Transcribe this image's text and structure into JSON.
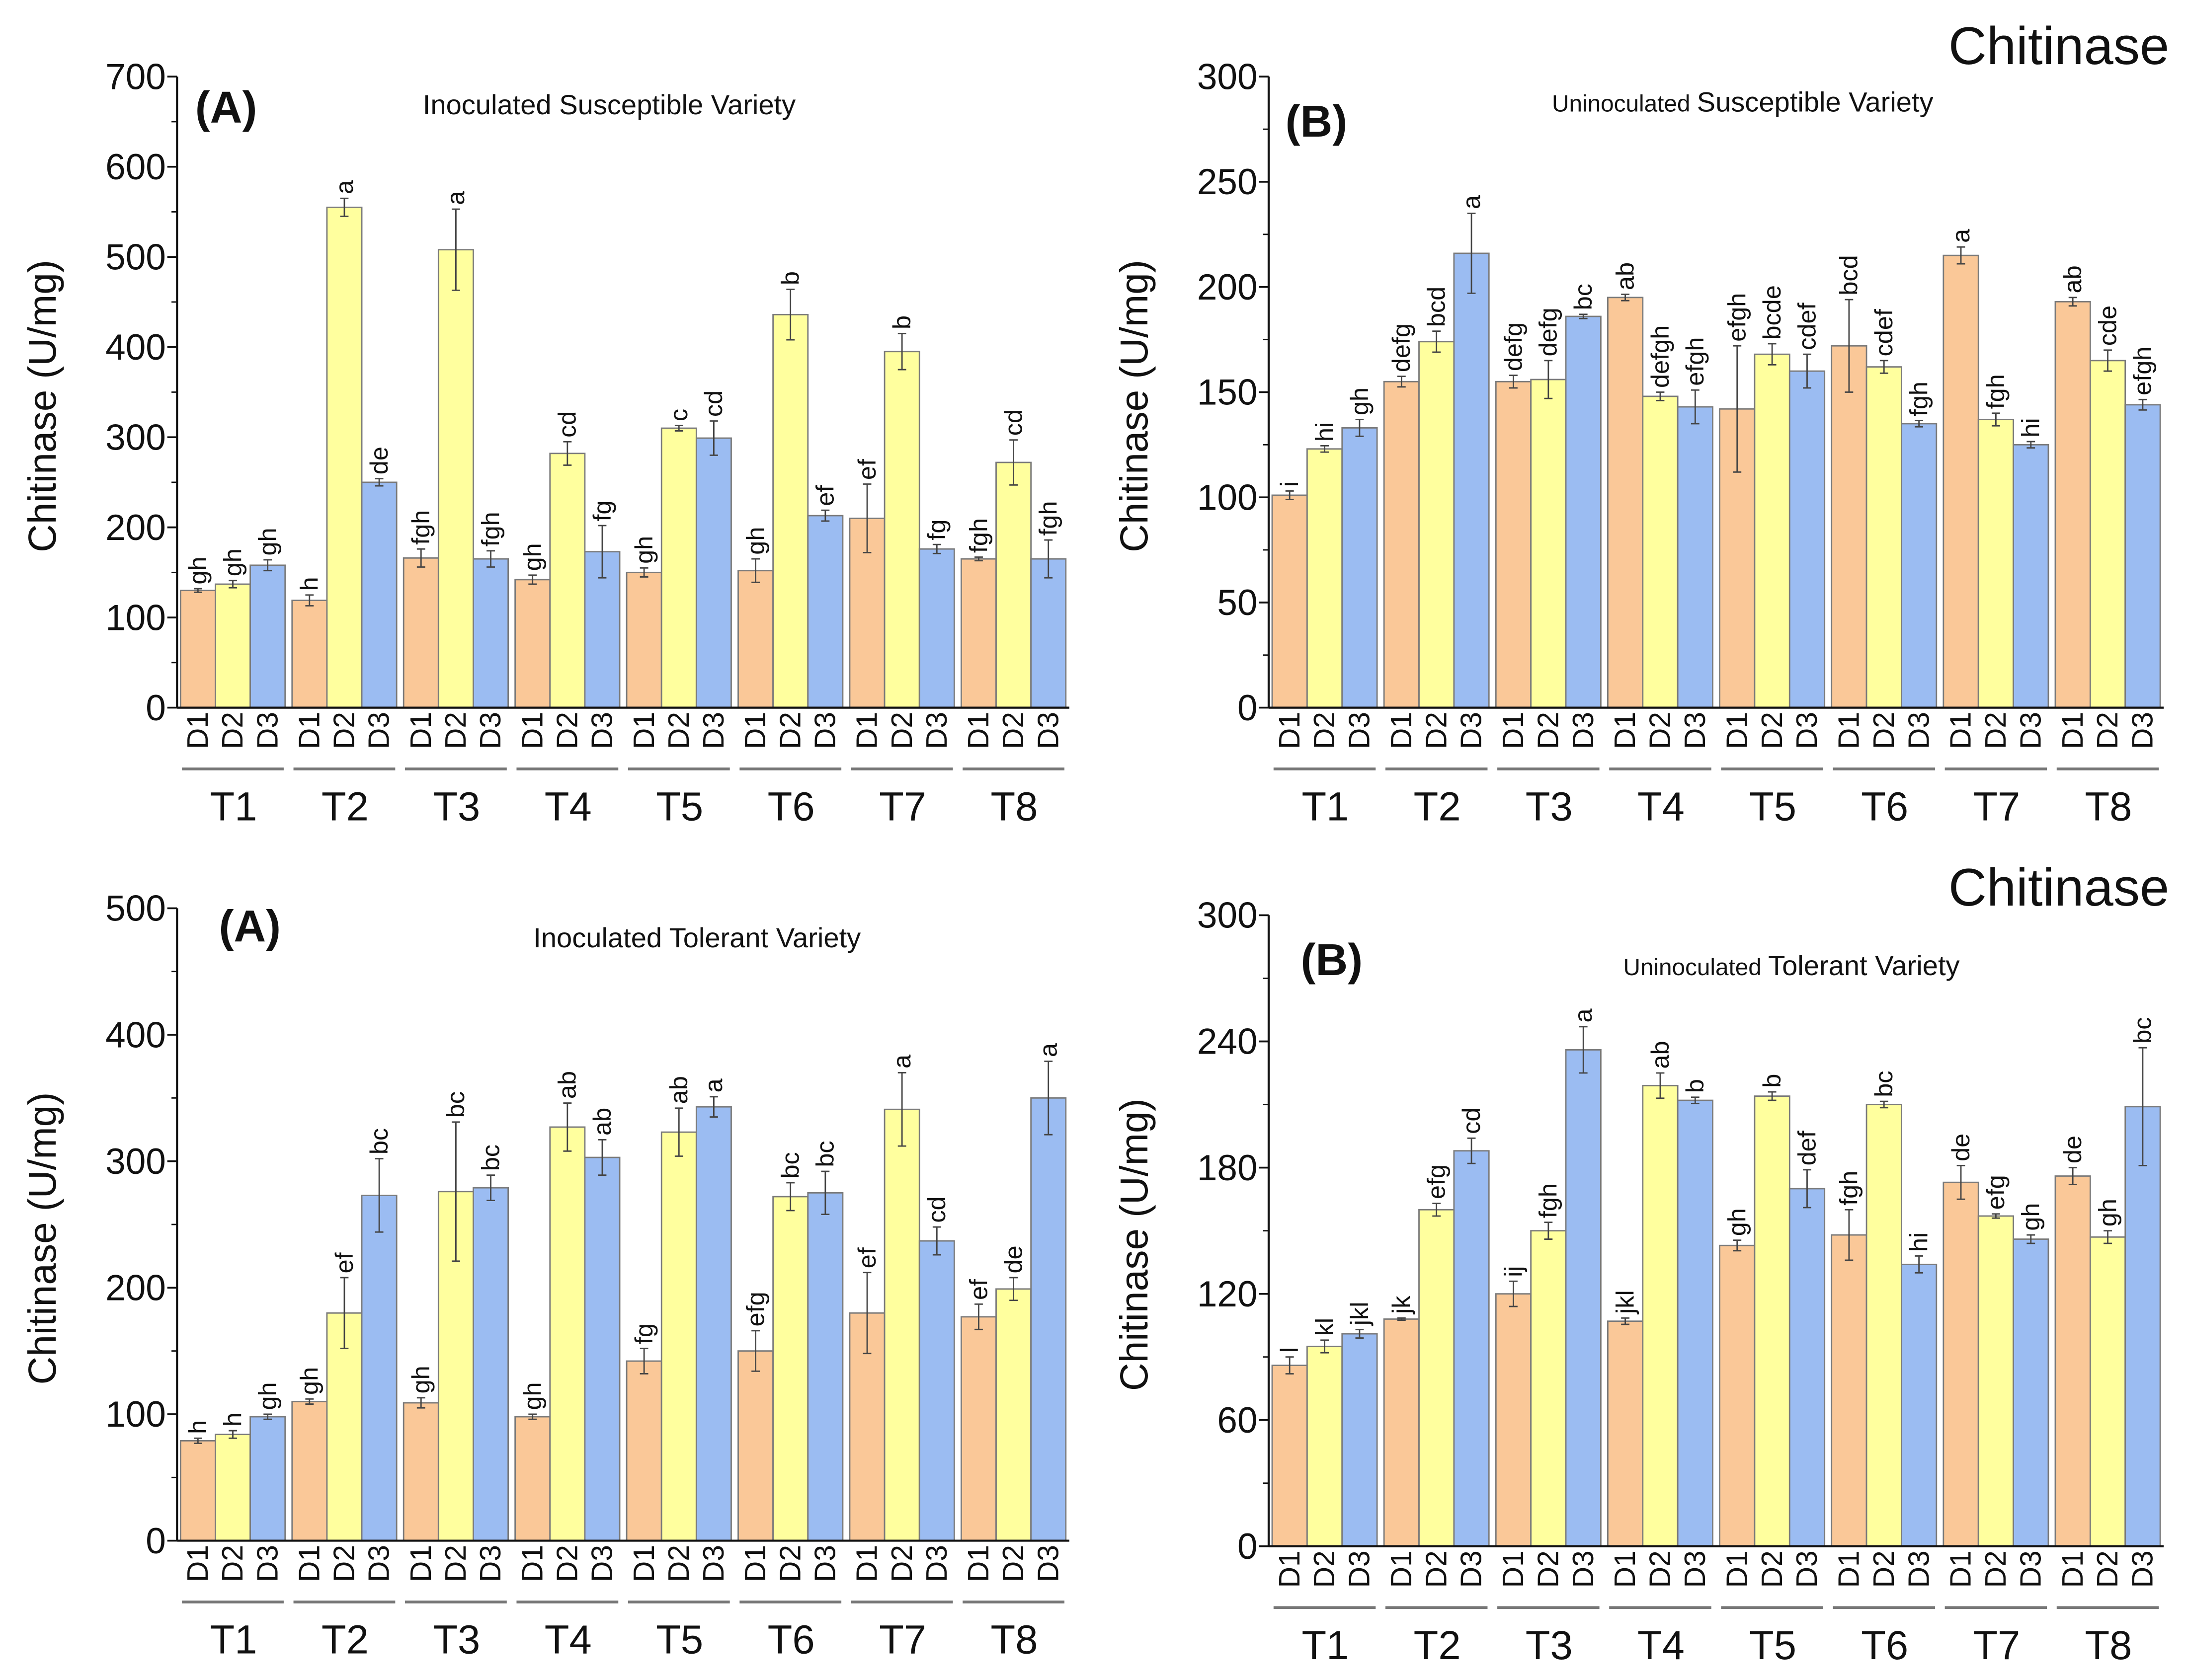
{
  "colors": {
    "D1": "#FAC898",
    "D2": "#FFFF9E",
    "D3": "#9BBCF2",
    "outline": "#7a7a7a",
    "error": "#444444"
  },
  "chart_data": [
    {
      "type": "bar",
      "panel_label": "(A)",
      "title": "Inoculated Susceptible Variety",
      "heading": "",
      "ylabel": "Chitinase (U/mg)",
      "ylim": [
        0,
        700
      ],
      "yticks": [
        0,
        100,
        200,
        300,
        400,
        500,
        600,
        700
      ],
      "categories": [
        "T1",
        "T2",
        "T3",
        "T4",
        "T5",
        "T6",
        "T7",
        "T8"
      ],
      "series": [
        {
          "name": "D1",
          "values": [
            130,
            119,
            166,
            142,
            150,
            152,
            210,
            165
          ],
          "errors": [
            2,
            6,
            10,
            5,
            5,
            13,
            38,
            2
          ],
          "letters": [
            "gh",
            "h",
            "fgh",
            "gh",
            "gh",
            "gh",
            "ef",
            "fgh"
          ]
        },
        {
          "name": "D2",
          "values": [
            137,
            555,
            508,
            282,
            310,
            436,
            395,
            272
          ],
          "errors": [
            4,
            10,
            45,
            13,
            3,
            28,
            20,
            25
          ],
          "letters": [
            "gh",
            "a",
            "a",
            "cd",
            "c",
            "b",
            "b",
            "cd"
          ]
        },
        {
          "name": "D3",
          "values": [
            158,
            250,
            165,
            173,
            299,
            213,
            176,
            165
          ],
          "errors": [
            6,
            4,
            9,
            29,
            19,
            6,
            5,
            21
          ],
          "letters": [
            "gh",
            "de",
            "fgh",
            "fg",
            "cd",
            "ef",
            "fg",
            "fgh"
          ]
        }
      ]
    },
    {
      "type": "bar",
      "panel_label": "(B)",
      "title_prefix": "Uninoculated",
      "title": "Susceptible Variety",
      "heading": "Chitinase",
      "ylabel": "Chitinase (U/mg)",
      "ylim": [
        0,
        300
      ],
      "yticks": [
        0,
        50,
        100,
        150,
        200,
        250,
        300
      ],
      "categories": [
        "T1",
        "T2",
        "T3",
        "T4",
        "T5",
        "T6",
        "T7",
        "T8"
      ],
      "series": [
        {
          "name": "D1",
          "values": [
            101,
            155,
            155,
            195,
            142,
            172,
            215,
            193
          ],
          "errors": [
            2,
            2.5,
            3,
            1.5,
            30,
            22,
            4,
            2
          ],
          "letters": [
            "i",
            "defg",
            "defg",
            "ab",
            "efgh",
            "bcd",
            "a",
            "ab"
          ]
        },
        {
          "name": "D2",
          "values": [
            123,
            174,
            156,
            148,
            168,
            162,
            137,
            165
          ],
          "errors": [
            1.5,
            5,
            9,
            2,
            5,
            3,
            3,
            5
          ],
          "letters": [
            "hi",
            "bcd",
            "defg",
            "defgh",
            "bcde",
            "cdef",
            "fgh",
            "cde"
          ]
        },
        {
          "name": "D3",
          "values": [
            133,
            216,
            186,
            143,
            160,
            135,
            125,
            144
          ],
          "errors": [
            4,
            19,
            1,
            8,
            8,
            1.5,
            1.5,
            2.5
          ],
          "letters": [
            "gh",
            "a",
            "bc",
            "efgh",
            "cdef",
            "fgh",
            "hi",
            "efgh"
          ]
        }
      ]
    },
    {
      "type": "bar",
      "panel_label": "(A)",
      "title": "Inoculated Tolerant Variety",
      "heading": "",
      "ylabel": "Chitinase (U/mg)",
      "ylim": [
        0,
        500
      ],
      "yticks": [
        0,
        100,
        200,
        300,
        400,
        500
      ],
      "categories": [
        "T1",
        "T2",
        "T3",
        "T4",
        "T5",
        "T6",
        "T7",
        "T8"
      ],
      "series": [
        {
          "name": "D1",
          "values": [
            79,
            110,
            109,
            98,
            142,
            150,
            180,
            177
          ],
          "errors": [
            2,
            2,
            4,
            2,
            10,
            16,
            32,
            10
          ],
          "letters": [
            "h",
            "gh",
            "gh",
            "gh",
            "fg",
            "efg",
            "ef",
            "ef"
          ]
        },
        {
          "name": "D2",
          "values": [
            84,
            180,
            276,
            327,
            323,
            272,
            341,
            199
          ],
          "errors": [
            3,
            28,
            55,
            19,
            19,
            11,
            29,
            9
          ],
          "letters": [
            "h",
            "ef",
            "bc",
            "ab",
            "ab",
            "bc",
            "a",
            "de"
          ]
        },
        {
          "name": "D3",
          "values": [
            98,
            273,
            279,
            303,
            343,
            275,
            237,
            350
          ],
          "errors": [
            2,
            29,
            10,
            14,
            8,
            17,
            11,
            29
          ],
          "letters": [
            "gh",
            "bc",
            "bc",
            "ab",
            "a",
            "bc",
            "cd",
            "a"
          ]
        }
      ]
    },
    {
      "type": "bar",
      "panel_label": "(B)",
      "title_prefix": "Uninoculated",
      "title": "Tolerant Variety",
      "heading": "Chitinase",
      "ylabel": "Chitinase (U/mg)",
      "ylim": [
        0,
        300
      ],
      "yticks": [
        0,
        60,
        120,
        180,
        240,
        300
      ],
      "categories": [
        "T1",
        "T2",
        "T3",
        "T4",
        "T5",
        "T6",
        "T7",
        "T8"
      ],
      "series": [
        {
          "name": "D1",
          "values": [
            86,
            108,
            120,
            107,
            143,
            148,
            173,
            176
          ],
          "errors": [
            4,
            0.5,
            6,
            1.5,
            2.5,
            12,
            8,
            4
          ],
          "letters": [
            "l",
            "jk",
            "ij",
            "jkl",
            "gh",
            "fgh",
            "de",
            "de"
          ]
        },
        {
          "name": "D2",
          "values": [
            95,
            160,
            150,
            219,
            214,
            210,
            157,
            147
          ],
          "errors": [
            3,
            3,
            4,
            6,
            2,
            1.5,
            1,
            3
          ],
          "letters": [
            "kl",
            "efg",
            "fgh",
            "ab",
            "b",
            "bc",
            "efg",
            "gh"
          ]
        },
        {
          "name": "D3",
          "values": [
            101,
            188,
            236,
            212,
            170,
            134,
            146,
            209
          ],
          "errors": [
            2,
            6,
            11,
            1.5,
            9,
            4,
            2,
            28
          ],
          "letters": [
            "jkl",
            "cd",
            "a",
            "b",
            "def",
            "hi",
            "gh",
            "bc"
          ]
        }
      ]
    }
  ]
}
